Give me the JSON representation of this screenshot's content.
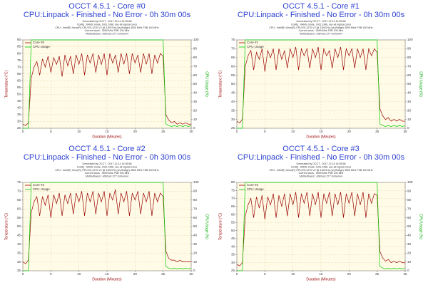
{
  "chart_data": [
    {
      "type": "line",
      "title": "OCCT 4.5.1 - Core #0",
      "subtitle": "CPU:Linpack - Finished - No Error - 0h 30m 00s",
      "info": [
        "Generated by OCCT - 2017.12.14 14:05:58",
        "Config : 64bits mode, 2411.1MB, use all logical cores",
        "CPU : Intel(R) Xeon(R) CPU E5-1270 V2 @ 3.50GHz (Ivy Bridge) 3500 MHz FSB 100 MHz",
        "Current clock : 3599 Mhz FSB 100 Mhz",
        "MotherBoard : ASRock Z77 Extreme4"
      ],
      "x_label": "Duration (Minutes)",
      "y_label": "Temperature (°C)",
      "y2_label": "CPU Usage (%)",
      "xlim": [
        0,
        30
      ],
      "xticks": [
        0,
        5,
        10,
        15,
        20,
        25,
        30
      ],
      "ylim": [
        25,
        90
      ],
      "yticks": [
        25,
        30,
        35,
        40,
        45,
        50,
        55,
        60,
        65,
        70,
        75,
        80,
        85,
        90
      ],
      "y2lim": [
        0,
        100
      ],
      "y2ticks": [
        0,
        10,
        20,
        30,
        40,
        50,
        60,
        70,
        80,
        90,
        100
      ],
      "grid": true,
      "x": [
        0,
        0.5,
        1,
        1.5,
        2,
        2.5,
        3,
        3.5,
        4,
        4.5,
        5,
        5.5,
        6,
        6.5,
        7,
        7.5,
        8,
        8.5,
        9,
        9.5,
        10,
        10.5,
        11,
        11.5,
        12,
        12.5,
        13,
        13.5,
        14,
        14.5,
        15,
        15.5,
        16,
        16.5,
        17,
        17.5,
        18,
        18.5,
        19,
        19.5,
        20,
        20.5,
        21,
        21.5,
        22,
        22.5,
        23,
        23.5,
        24,
        24.5,
        25,
        25.5,
        26,
        26.5,
        27,
        27.5,
        28,
        28.5,
        29,
        29.5,
        30
      ],
      "series": [
        {
          "name": "Core #0",
          "color": "#990000",
          "values": [
            28,
            27,
            29,
            62,
            70,
            74,
            64,
            76,
            70,
            78,
            66,
            77,
            72,
            78,
            63,
            79,
            71,
            78,
            65,
            79,
            72,
            80,
            64,
            79,
            73,
            80,
            66,
            79,
            72,
            80,
            64,
            80,
            73,
            79,
            66,
            80,
            72,
            80,
            65,
            80,
            73,
            79,
            66,
            80,
            72,
            80,
            65,
            79,
            73,
            80,
            78,
            35,
            31,
            29,
            30,
            28,
            29,
            28,
            29,
            28,
            28
          ]
        },
        {
          "name": "CPU Usage",
          "color": "#00cc00",
          "axis": "y2",
          "values": [
            0,
            0,
            0,
            100,
            100,
            100,
            100,
            100,
            100,
            100,
            100,
            100,
            100,
            100,
            100,
            100,
            100,
            100,
            100,
            100,
            100,
            100,
            100,
            100,
            100,
            100,
            100,
            100,
            100,
            100,
            100,
            100,
            100,
            100,
            100,
            100,
            100,
            100,
            100,
            100,
            100,
            100,
            100,
            100,
            100,
            100,
            100,
            100,
            100,
            100,
            100,
            5,
            3,
            2,
            3,
            2,
            3,
            2,
            3,
            2,
            3
          ]
        }
      ]
    },
    {
      "type": "line",
      "title": "OCCT 4.5.1 - Core #1",
      "subtitle": "CPU:Linpack - Finished - No Error - 0h 30m 00s",
      "info": [
        "Generated by OCCT - 2017.12.14 14:05:58",
        "Config : 64bits mode, 2411.1MB, use all logical cores",
        "CPU : Intel(R) Xeon(R) CPU E5-1270 V2 @ 3.50GHz (Ivy Bridge) 3500 MHz FSB 100 MHz",
        "Current clock : 3599 Mhz FSB 100 Mhz",
        "MotherBoard : ASRock Z77 Extreme4"
      ],
      "x_label": "Duration (Minutes)",
      "y_label": "Temperature (°C)",
      "y2_label": "CPU Usage (%)",
      "xlim": [
        0,
        30
      ],
      "xticks": [
        0,
        5,
        10,
        15,
        20,
        25,
        30
      ],
      "ylim": [
        25,
        75
      ],
      "yticks": [
        25,
        30,
        35,
        40,
        45,
        50,
        55,
        60,
        65,
        70,
        75
      ],
      "y2lim": [
        0,
        100
      ],
      "y2ticks": [
        0,
        10,
        20,
        30,
        40,
        50,
        60,
        70,
        80,
        90,
        100
      ],
      "grid": true,
      "x": [
        0,
        0.5,
        1,
        1.5,
        2,
        2.5,
        3,
        3.5,
        4,
        4.5,
        5,
        5.5,
        6,
        6.5,
        7,
        7.5,
        8,
        8.5,
        9,
        9.5,
        10,
        10.5,
        11,
        11.5,
        12,
        12.5,
        13,
        13.5,
        14,
        14.5,
        15,
        15.5,
        16,
        16.5,
        17,
        17.5,
        18,
        18.5,
        19,
        19.5,
        20,
        20.5,
        21,
        21.5,
        22,
        22.5,
        23,
        23.5,
        24,
        24.5,
        25,
        25.5,
        26,
        26.5,
        27,
        27.5,
        28,
        28.5,
        29,
        29.5,
        30
      ],
      "series": [
        {
          "name": "Core #1",
          "color": "#990000",
          "values": [
            29,
            28,
            30,
            60,
            66,
            69,
            58,
            68,
            64,
            70,
            57,
            69,
            65,
            70,
            58,
            70,
            64,
            69,
            59,
            70,
            65,
            71,
            58,
            70,
            66,
            70,
            59,
            70,
            65,
            71,
            58,
            70,
            66,
            69,
            59,
            70,
            65,
            71,
            58,
            70,
            66,
            70,
            59,
            70,
            65,
            70,
            58,
            70,
            66,
            70,
            68,
            36,
            32,
            30,
            31,
            29,
            30,
            29,
            30,
            29,
            29
          ]
        },
        {
          "name": "CPU Usage",
          "color": "#00cc00",
          "axis": "y2",
          "values": [
            0,
            0,
            0,
            100,
            100,
            100,
            100,
            100,
            100,
            100,
            100,
            100,
            100,
            100,
            100,
            100,
            100,
            100,
            100,
            100,
            100,
            100,
            100,
            100,
            100,
            100,
            100,
            100,
            100,
            100,
            100,
            100,
            100,
            100,
            100,
            100,
            100,
            100,
            100,
            100,
            100,
            100,
            100,
            100,
            100,
            100,
            100,
            100,
            100,
            100,
            100,
            5,
            3,
            2,
            3,
            2,
            3,
            2,
            3,
            2,
            3
          ]
        }
      ]
    },
    {
      "type": "line",
      "title": "OCCT 4.5.1 - Core #2",
      "subtitle": "CPU:Linpack - Finished - No Error - 0h 30m 00s",
      "info": [
        "Generated by OCCT - 2017.12.14 14:05:58",
        "Config : 64bits mode, 2411.1MB, use all logical cores",
        "CPU : Intel(R) Xeon(R) CPU E5-1270 V2 @ 3.50GHz (Ivy Bridge) 3500 MHz FSB 100 MHz",
        "Current clock : 3599 Mhz FSB 100 Mhz",
        "MotherBoard : ASRock Z77 Extreme4"
      ],
      "x_label": "Duration (Minutes)",
      "y_label": "Temperature (°C)",
      "y2_label": "CPU Usage (%)",
      "xlim": [
        0,
        30
      ],
      "xticks": [
        0,
        5,
        10,
        15,
        20,
        25,
        30
      ],
      "ylim": [
        25,
        75
      ],
      "yticks": [
        25,
        30,
        35,
        40,
        45,
        50,
        55,
        60,
        65,
        70,
        75
      ],
      "y2lim": [
        0,
        100
      ],
      "y2ticks": [
        0,
        10,
        20,
        30,
        40,
        50,
        60,
        70,
        80,
        90,
        100
      ],
      "grid": true,
      "x": [
        0,
        0.5,
        1,
        1.5,
        2,
        2.5,
        3,
        3.5,
        4,
        4.5,
        5,
        5.5,
        6,
        6.5,
        7,
        7.5,
        8,
        8.5,
        9,
        9.5,
        10,
        10.5,
        11,
        11.5,
        12,
        12.5,
        13,
        13.5,
        14,
        14.5,
        15,
        15.5,
        16,
        16.5,
        17,
        17.5,
        18,
        18.5,
        19,
        19.5,
        20,
        20.5,
        21,
        21.5,
        22,
        22.5,
        23,
        23.5,
        24,
        24.5,
        25,
        25.5,
        26,
        26.5,
        27,
        27.5,
        28,
        28.5,
        29,
        29.5,
        30
      ],
      "series": [
        {
          "name": "Core #2",
          "color": "#990000",
          "values": [
            30,
            29,
            31,
            58,
            64,
            67,
            56,
            67,
            62,
            68,
            55,
            68,
            63,
            69,
            56,
            68,
            63,
            69,
            57,
            69,
            64,
            70,
            56,
            69,
            64,
            70,
            57,
            69,
            64,
            70,
            56,
            69,
            65,
            71,
            57,
            69,
            64,
            70,
            56,
            69,
            65,
            70,
            57,
            69,
            64,
            70,
            56,
            69,
            64,
            69,
            67,
            36,
            32,
            31,
            31,
            30,
            31,
            30,
            30,
            30,
            30
          ]
        },
        {
          "name": "CPU Usage",
          "color": "#00cc00",
          "axis": "y2",
          "values": [
            0,
            0,
            0,
            100,
            100,
            100,
            100,
            100,
            100,
            100,
            100,
            100,
            100,
            100,
            100,
            100,
            100,
            100,
            100,
            100,
            100,
            100,
            100,
            100,
            100,
            100,
            100,
            100,
            100,
            100,
            100,
            100,
            100,
            100,
            100,
            100,
            100,
            100,
            100,
            100,
            100,
            100,
            100,
            100,
            100,
            100,
            100,
            100,
            100,
            100,
            100,
            5,
            3,
            2,
            3,
            2,
            3,
            2,
            3,
            2,
            3
          ]
        }
      ]
    },
    {
      "type": "line",
      "title": "OCCT 4.5.1 - Core #3",
      "subtitle": "CPU:Linpack - Finished - No Error - 0h 30m 00s",
      "info": [
        "Generated by OCCT - 2017.12.14 14:05:58",
        "Config : 64bits mode, 2411.1MB, use all logical cores",
        "CPU : Intel(R) Xeon(R) CPU E5-1270 V2 @ 3.50GHz (Ivy Bridge) 3500 MHz FSB 100 MHz",
        "Current clock : 3599 Mhz FSB 100 Mhz",
        "MotherBoard : ASRock Z77 Extreme4"
      ],
      "x_label": "Duration (Minutes)",
      "y_label": "Temperature (°C)",
      "y2_label": "CPU Usage (%)",
      "xlim": [
        0,
        30
      ],
      "xticks": [
        0,
        5,
        10,
        15,
        20,
        25,
        30
      ],
      "ylim": [
        25,
        80
      ],
      "yticks": [
        25,
        30,
        35,
        40,
        45,
        50,
        55,
        60,
        65,
        70,
        75,
        80
      ],
      "y2lim": [
        0,
        100
      ],
      "y2ticks": [
        0,
        10,
        20,
        30,
        40,
        50,
        60,
        70,
        80,
        90,
        100
      ],
      "grid": true,
      "x": [
        0,
        0.5,
        1,
        1.5,
        2,
        2.5,
        3,
        3.5,
        4,
        4.5,
        5,
        5.5,
        6,
        6.5,
        7,
        7.5,
        8,
        8.5,
        9,
        9.5,
        10,
        10.5,
        11,
        11.5,
        12,
        12.5,
        13,
        13.5,
        14,
        14.5,
        15,
        15.5,
        16,
        16.5,
        17,
        17.5,
        18,
        18.5,
        19,
        19.5,
        20,
        20.5,
        21,
        21.5,
        22,
        22.5,
        23,
        23.5,
        24,
        24.5,
        25,
        25.5,
        26,
        26.5,
        27,
        27.5,
        28,
        28.5,
        29,
        29.5,
        30
      ],
      "series": [
        {
          "name": "Core #3",
          "color": "#990000",
          "values": [
            29,
            28,
            30,
            59,
            66,
            70,
            58,
            71,
            64,
            72,
            57,
            71,
            66,
            73,
            58,
            72,
            65,
            73,
            59,
            73,
            66,
            74,
            58,
            73,
            67,
            74,
            59,
            73,
            66,
            74,
            58,
            73,
            67,
            74,
            59,
            73,
            66,
            74,
            58,
            73,
            67,
            74,
            59,
            73,
            66,
            74,
            58,
            73,
            67,
            73,
            72,
            37,
            33,
            31,
            32,
            30,
            31,
            30,
            31,
            30,
            30
          ]
        },
        {
          "name": "CPU Usage",
          "color": "#00cc00",
          "axis": "y2",
          "values": [
            0,
            0,
            0,
            100,
            100,
            100,
            100,
            100,
            100,
            100,
            100,
            100,
            100,
            100,
            100,
            100,
            100,
            100,
            100,
            100,
            100,
            100,
            100,
            100,
            100,
            100,
            100,
            100,
            100,
            100,
            100,
            100,
            100,
            100,
            100,
            100,
            100,
            100,
            100,
            100,
            100,
            100,
            100,
            100,
            100,
            100,
            100,
            100,
            100,
            100,
            100,
            5,
            3,
            2,
            3,
            2,
            3,
            2,
            3,
            2,
            3
          ]
        }
      ]
    }
  ]
}
